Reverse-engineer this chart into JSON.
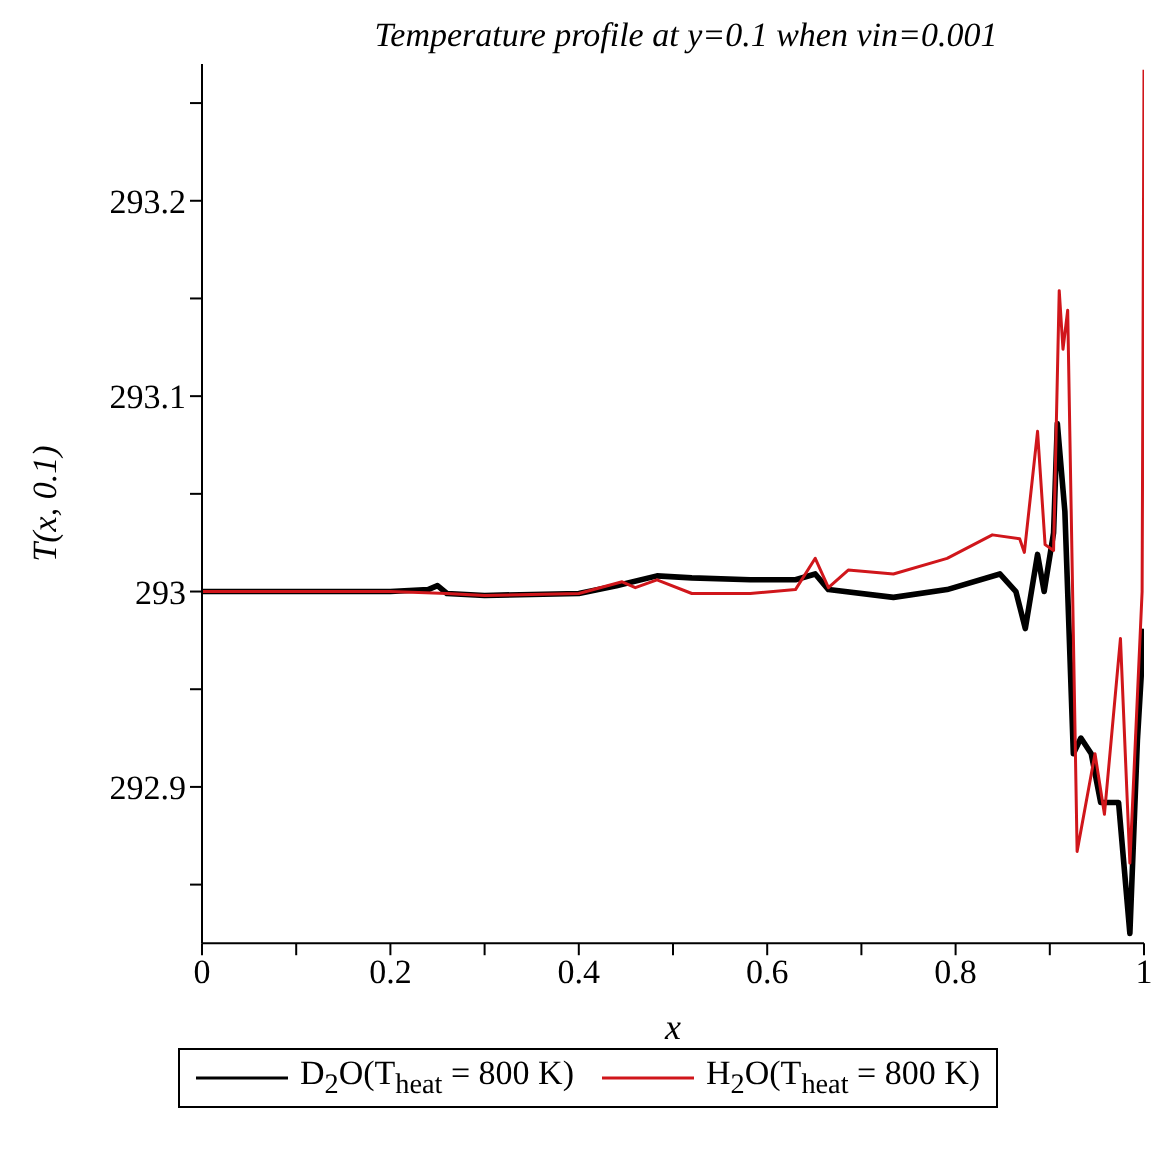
{
  "chart_data": {
    "type": "line",
    "title": "Temperature profile at y=0.1 when vin=0.001",
    "xlabel": "x",
    "ylabel": "T(x, 0.1)",
    "xlim": [
      0,
      1
    ],
    "xticks": [
      0,
      {
        "value": 0.1,
        "label": null
      },
      0.2,
      {
        "value": 0.3,
        "label": null
      },
      0.4,
      {
        "value": 0.5,
        "label": null
      },
      0.6,
      {
        "value": 0.7,
        "label": null
      },
      0.8,
      {
        "value": 0.9,
        "label": null
      },
      1
    ],
    "ylim": [
      292.82,
      293.27
    ],
    "yticks": [
      {
        "value": 292.85,
        "label": null
      },
      292.9,
      {
        "value": 292.95,
        "label": null
      },
      293,
      {
        "value": 293.05,
        "label": null
      },
      293.1,
      {
        "value": 293.15,
        "label": null
      },
      293.2,
      {
        "value": 293.25,
        "label": null
      }
    ],
    "grid": false,
    "legend": "bottom",
    "marker": "none",
    "line_style": "solid",
    "series": [
      {
        "name": "D$_{2}$O(T$_{heat}$ = 800 K)",
        "color": "#000000",
        "x": [
          0,
          0.2,
          0.24,
          0.25,
          0.26,
          0.3,
          0.4,
          0.44,
          0.483,
          0.52,
          0.582,
          0.63,
          0.651,
          0.665,
          0.734,
          0.791,
          0.847,
          0.864,
          0.874,
          0.887,
          0.894,
          0.904,
          0.908,
          0.916,
          0.925,
          0.933,
          0.944,
          0.954,
          0.973,
          0.985,
          0.993,
          1.0
        ],
        "values": [
          293,
          293,
          293.001,
          293.003,
          292.999,
          292.998,
          292.999,
          293.003,
          293.008,
          293.007,
          293.006,
          293.006,
          293.009,
          293.001,
          292.997,
          293.001,
          293.009,
          293.0,
          292.981,
          293.019,
          293.0,
          293.03,
          293.086,
          293.041,
          292.917,
          292.925,
          292.917,
          292.892,
          292.892,
          292.825,
          292.924,
          292.981
        ]
      },
      {
        "name": "H$_{2}$O(T$_{heat}$ = 800 K)",
        "color": "#d0161b",
        "x": [
          0,
          0.2,
          0.26,
          0.3,
          0.4,
          0.446,
          0.46,
          0.483,
          0.52,
          0.582,
          0.63,
          0.651,
          0.665,
          0.686,
          0.734,
          0.791,
          0.839,
          0.868,
          0.873,
          0.887,
          0.895,
          0.904,
          0.91,
          0.914,
          0.919,
          0.929,
          0.948,
          0.958,
          0.975,
          0.985,
          0.998,
          1.0
        ],
        "values": [
          293,
          293,
          292.999,
          292.998,
          292.999,
          293.005,
          293.002,
          293.006,
          292.999,
          292.999,
          293.001,
          293.017,
          293.002,
          293.011,
          293.009,
          293.017,
          293.029,
          293.027,
          293.02,
          293.082,
          293.024,
          293.021,
          293.154,
          293.124,
          293.144,
          292.867,
          292.917,
          292.886,
          292.976,
          292.861,
          293.0,
          293.267
        ]
      }
    ]
  }
}
